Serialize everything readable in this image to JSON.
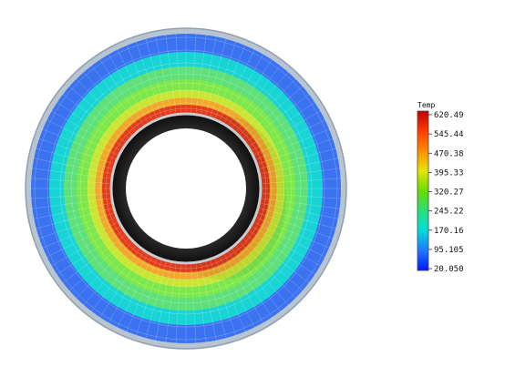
{
  "legend": {
    "title": "Temp",
    "ticks": [
      "620.49",
      "545.44",
      "470.38",
      "395.33",
      "320.27",
      "245.22",
      "170.16",
      "95.105",
      "20.050"
    ],
    "stops": [
      "#c00000",
      "#ff3c00",
      "#ff8c00",
      "#e6e600",
      "#6adc00",
      "#27e07a",
      "#00dcdc",
      "#1e78ff",
      "#0018ff"
    ]
  },
  "field": {
    "bands": [
      {
        "color": "#b8c4cf"
      },
      {
        "color": "#3a72f0"
      },
      {
        "color": "#19d4d4"
      },
      {
        "color": "#5fe07a"
      },
      {
        "color": "#7ee84a"
      },
      {
        "color": "#c8e632"
      },
      {
        "color": "#f0a82a"
      },
      {
        "color": "#e23c1c"
      },
      {
        "color": "#d8341a"
      }
    ],
    "bore_color": "#151515",
    "mesh_color": "#ffffff"
  }
}
